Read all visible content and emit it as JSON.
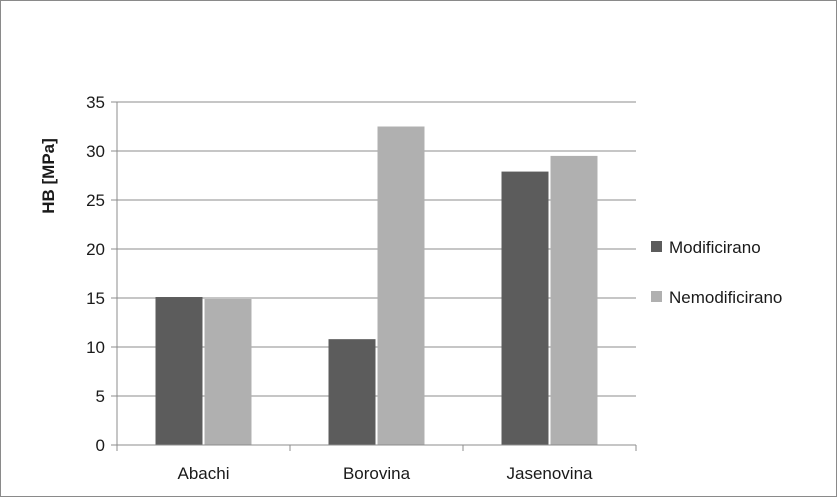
{
  "chart_data": {
    "type": "bar",
    "title": "",
    "xlabel": "",
    "ylabel": "HB [MPa]",
    "ylim": [
      0,
      35
    ],
    "yticks": [
      0,
      5,
      10,
      15,
      20,
      25,
      30,
      35
    ],
    "grid": true,
    "legend_position": "right",
    "categories": [
      "Abachi",
      "Borovina",
      "Jasenovina"
    ],
    "series": [
      {
        "name": "Modificirano",
        "values": [
          15.1,
          10.8,
          27.9
        ],
        "color": "#5c5c5c"
      },
      {
        "name": "Nemodificirano",
        "values": [
          14.9,
          32.5,
          29.5
        ],
        "color": "#b0b0b0"
      }
    ]
  }
}
